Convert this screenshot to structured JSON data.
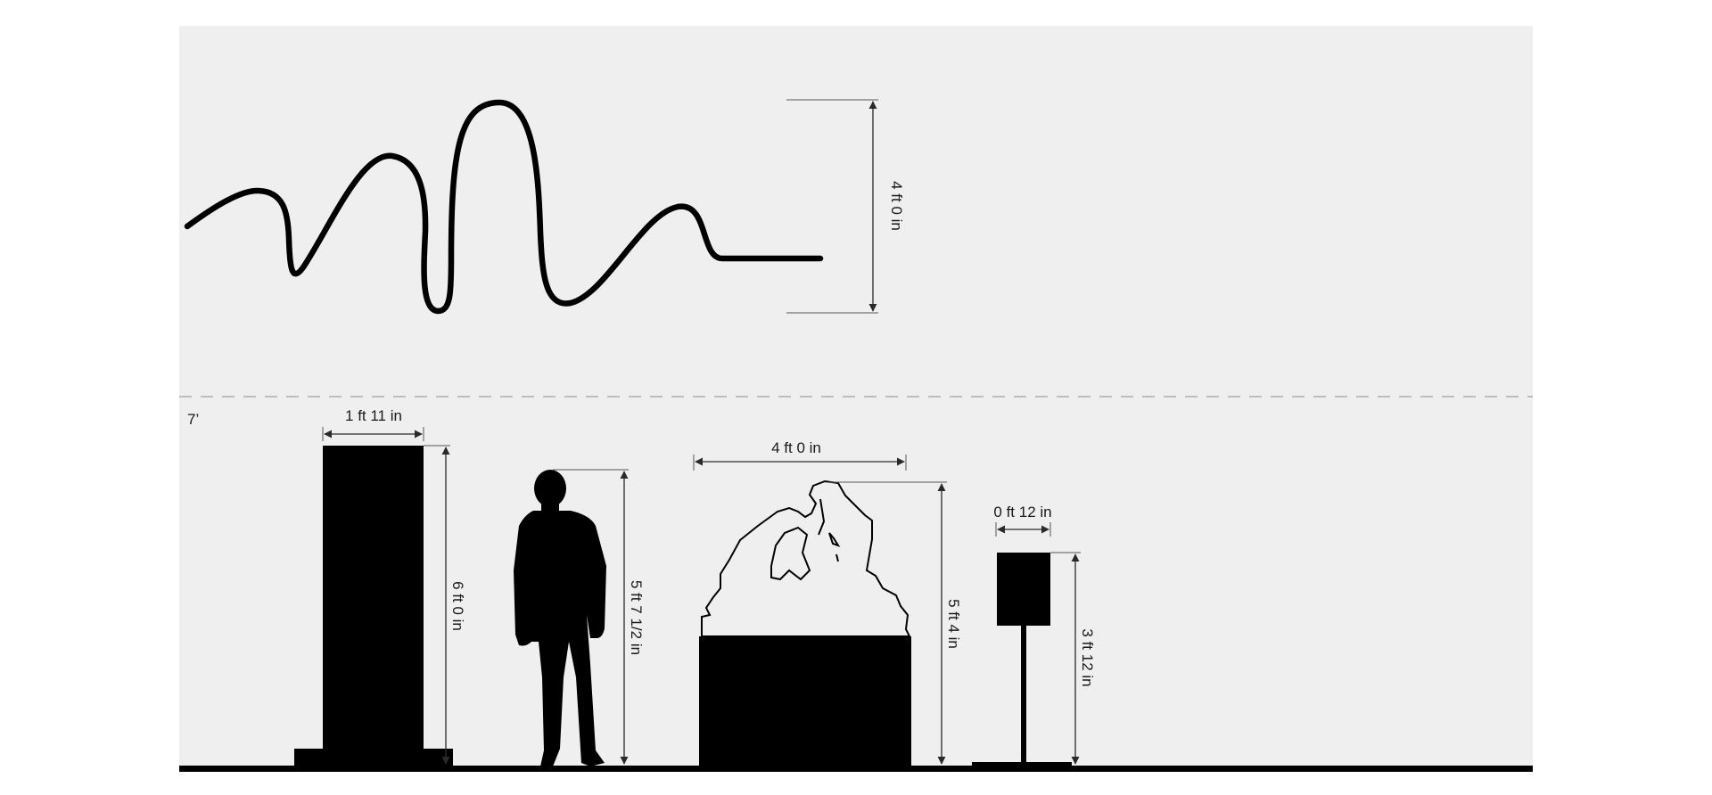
{
  "colors": {
    "wall": "#efefef",
    "page": "#ffffff",
    "ink": "#000000",
    "guide": "#bdbdbd"
  },
  "ceiling_label": "7’",
  "wave": {
    "height_label": "4 ft 0 in"
  },
  "pedestal": {
    "width_label": "1 ft 11 in",
    "height_label": "6 ft 0 in"
  },
  "person": {
    "height_label": "5 ft 7 1/2 in",
    "icon": "person-silhouette-icon"
  },
  "sculpture": {
    "width_label": "4 ft 0 in",
    "height_label": "5 ft 4 in",
    "icon": "sculpture-outline-icon"
  },
  "sign": {
    "width_label": "0 ft 12 in",
    "height_label": "3 ft 12 in"
  }
}
